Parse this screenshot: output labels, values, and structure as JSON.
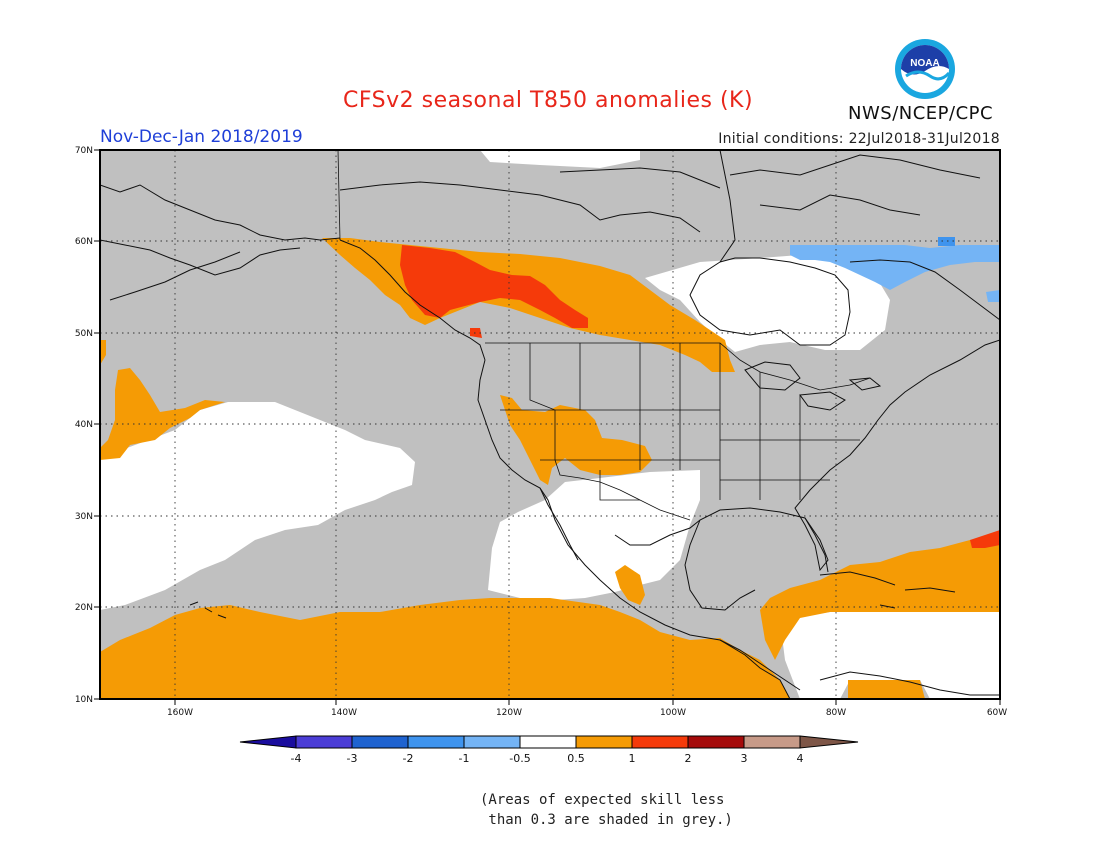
{
  "header": {
    "title": "CFSv2 seasonal T850 anomalies (K)",
    "season": "Nov-Dec-Jan 2018/2019",
    "initial_conditions": "Initial conditions: 22Jul2018-31Jul2018",
    "agency": "NWS/NCEP/CPC",
    "logo_text": "NOAA"
  },
  "map": {
    "lat_labels": [
      "70N",
      "60N",
      "50N",
      "40N",
      "30N",
      "20N",
      "10N"
    ],
    "lon_labels": [
      "160W",
      "140W",
      "120W",
      "100W",
      "80W",
      "60W"
    ],
    "colors": {
      "land_outline": "#111111",
      "grey_low_skill": "#c0c0c0",
      "neutral": "#ffffff",
      "anomaly_0_5_to_1": "#f59b05",
      "anomaly_1_to_2": "#f53a0a",
      "anomaly_neg_1_to_neg_0_5": "#74b4f5",
      "anomaly_neg_2_to_neg_1": "#3f94ee"
    }
  },
  "colorbar": {
    "labels": [
      "-4",
      "-3",
      "-2",
      "-1",
      "-0.5",
      "0.5",
      "1",
      "2",
      "3",
      "4"
    ],
    "colors": [
      "#1a0d9e",
      "#4b3dd6",
      "#1f63d0",
      "#3f94ee",
      "#74b4f5",
      "#ffffff",
      "#f59b05",
      "#f53a0a",
      "#a50b0b",
      "#c79a88",
      "#7e5647"
    ]
  },
  "footnote": {
    "line1": "(Areas of expected skill less",
    "line2": " than 0.3 are shaded in grey.)"
  }
}
